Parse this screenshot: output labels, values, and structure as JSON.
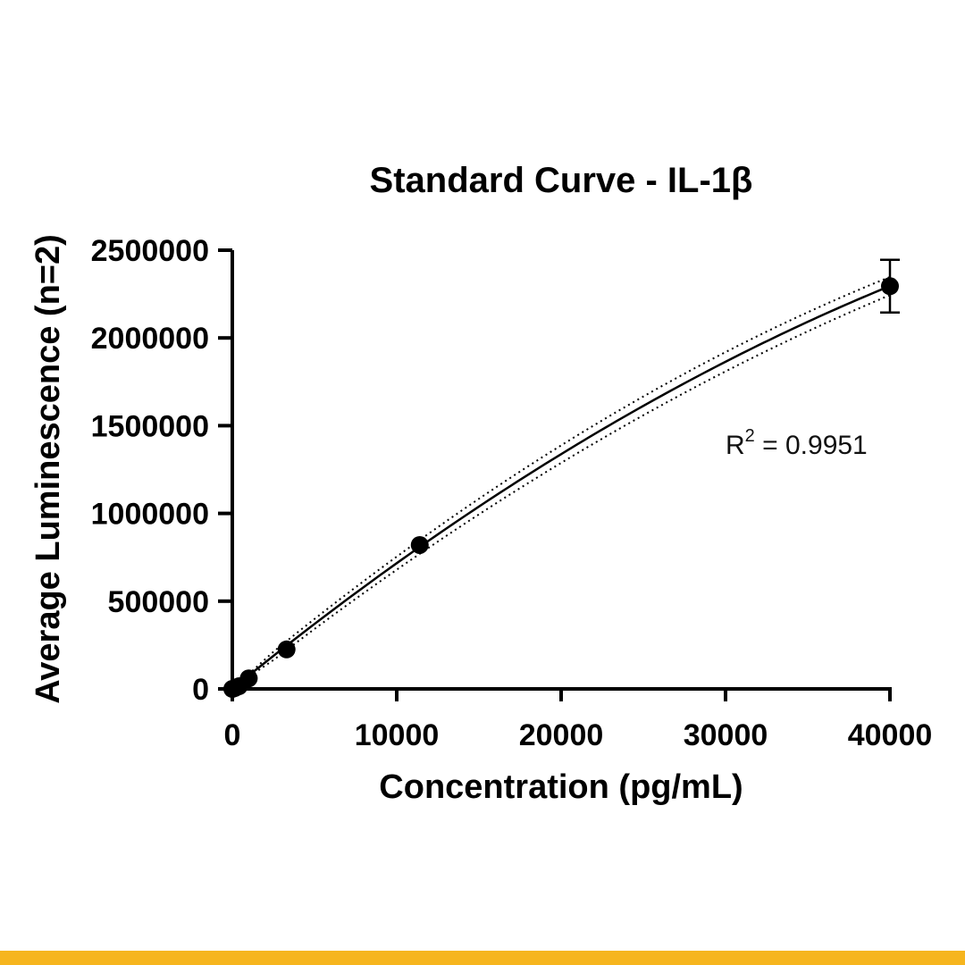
{
  "chart_data": {
    "type": "scatter",
    "title": "Standard Curve - IL-1β",
    "xlabel": "Concentration (pg/mL)",
    "ylabel": "Average Luminescence (n=2)",
    "xlim": [
      0,
      40000
    ],
    "ylim": [
      0,
      2500000
    ],
    "x_ticks": [
      0,
      10000,
      20000,
      30000,
      40000
    ],
    "y_ticks": [
      0,
      500000,
      1000000,
      1500000,
      2000000,
      2500000
    ],
    "x_tick_labels": [
      "0",
      "10000",
      "20000",
      "30000",
      "40000"
    ],
    "y_tick_labels": [
      "0",
      "500000",
      "1000000",
      "1500000",
      "2000000",
      "2500000"
    ],
    "grid": false,
    "points": [
      {
        "x": 0,
        "y": 0
      },
      {
        "x": 150,
        "y": 5000
      },
      {
        "x": 400,
        "y": 15000
      },
      {
        "x": 1000,
        "y": 60000
      },
      {
        "x": 3300,
        "y": 225000
      },
      {
        "x": 11400,
        "y": 820000
      },
      {
        "x": 40000,
        "y": 2295000,
        "error": 150000
      }
    ],
    "fit": {
      "type": "curve",
      "equation_label_prefix": "R",
      "equation_label_sup": "2",
      "equation_label_suffix": " = 0.9951",
      "r_squared": 0.9951,
      "confidence_band": "dotted"
    }
  },
  "colors": {
    "ink": "#000000",
    "bottom_bar": "#f6b51e",
    "background": "#ffffff"
  }
}
